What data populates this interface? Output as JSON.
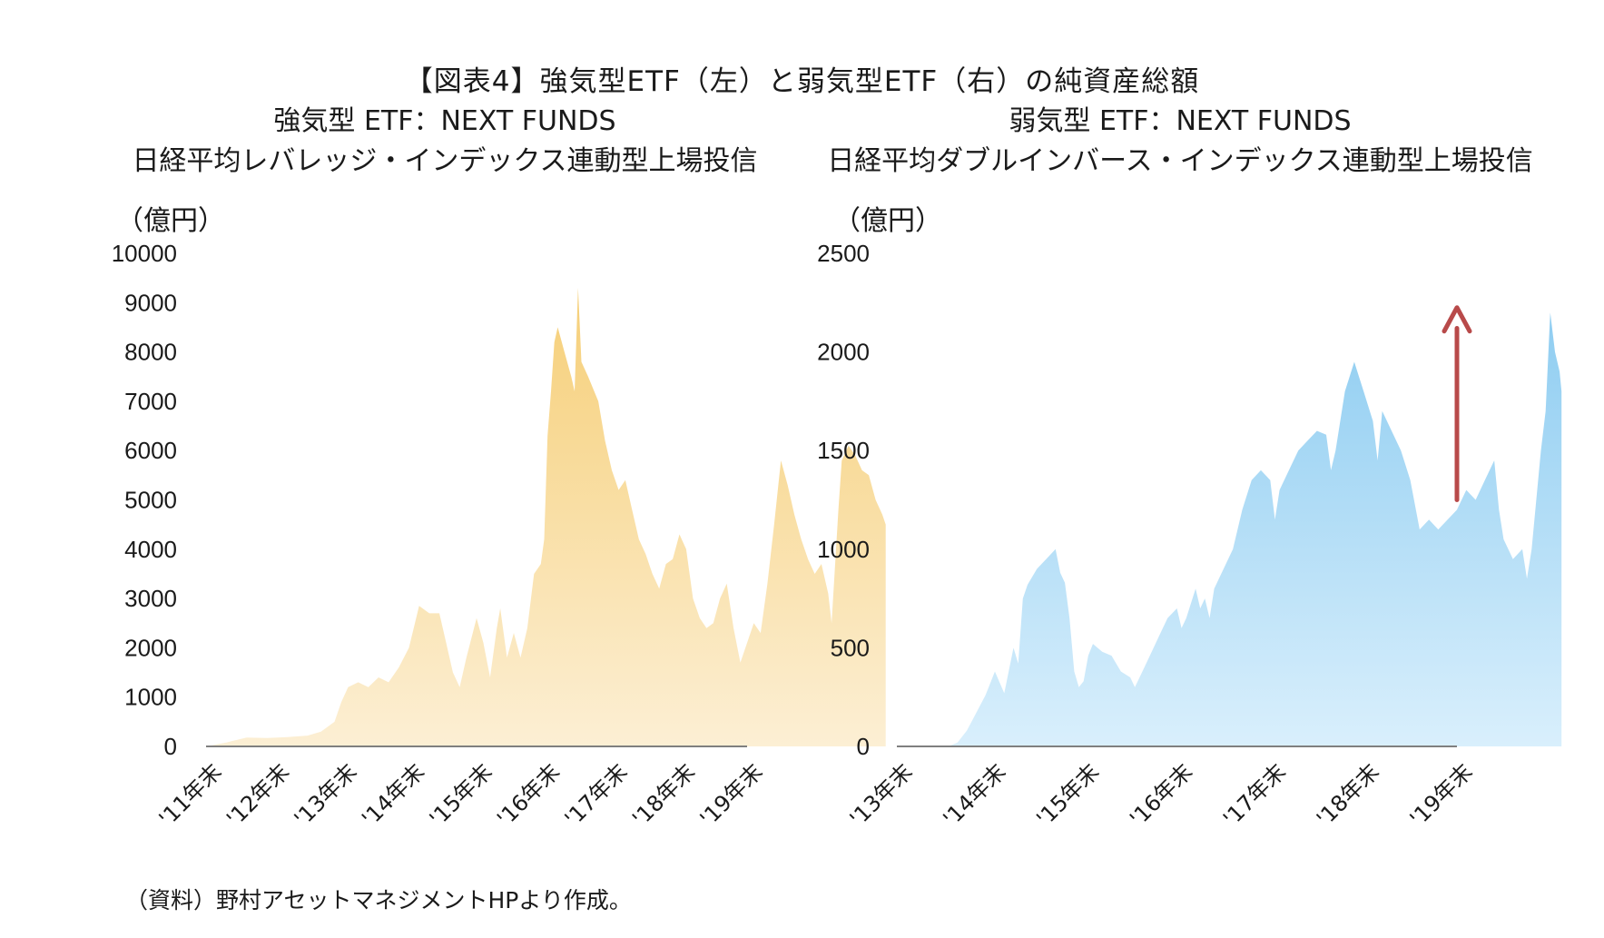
{
  "title": "【図表4】強気型ETF（左）と弱気型ETF（右）の純資産総額",
  "source": "（資料）野村アセットマネジメントHPより作成。",
  "chart_data": [
    {
      "type": "area",
      "subtitle_line1": "強気型 ETF：NEXT FUNDS",
      "subtitle_line2": "日経平均レバレッジ・インデックス連動型上場投信",
      "unit_label": "（億円）",
      "color": "#f8d790",
      "ylim": [
        0,
        10000
      ],
      "yticks": [
        "0",
        "1000",
        "2000",
        "3000",
        "4000",
        "5000",
        "6000",
        "7000",
        "8000",
        "9000",
        "10000"
      ],
      "x_categories": [
        "'11年末",
        "'12年末",
        "'13年末",
        "'14年末",
        "'15年末",
        "'16年末",
        "'17年末",
        "'18年末",
        "'19年末"
      ],
      "points": [
        [
          0.0,
          0
        ],
        [
          0.3,
          80
        ],
        [
          0.6,
          180
        ],
        [
          0.9,
          170
        ],
        [
          1.2,
          190
        ],
        [
          1.5,
          220
        ],
        [
          1.7,
          300
        ],
        [
          1.9,
          500
        ],
        [
          2.0,
          900
        ],
        [
          2.1,
          1200
        ],
        [
          2.25,
          1300
        ],
        [
          2.4,
          1200
        ],
        [
          2.55,
          1400
        ],
        [
          2.7,
          1300
        ],
        [
          2.85,
          1600
        ],
        [
          3.0,
          2000
        ],
        [
          3.15,
          2850
        ],
        [
          3.3,
          2700
        ],
        [
          3.45,
          2700
        ],
        [
          3.55,
          2100
        ],
        [
          3.65,
          1500
        ],
        [
          3.75,
          1200
        ],
        [
          3.85,
          1800
        ],
        [
          4.0,
          2600
        ],
        [
          4.1,
          2100
        ],
        [
          4.2,
          1400
        ],
        [
          4.3,
          2400
        ],
        [
          4.35,
          2800
        ],
        [
          4.45,
          1800
        ],
        [
          4.55,
          2300
        ],
        [
          4.65,
          1800
        ],
        [
          4.75,
          2400
        ],
        [
          4.85,
          3500
        ],
        [
          4.95,
          3700
        ],
        [
          5.0,
          4200
        ],
        [
          5.05,
          6300
        ],
        [
          5.1,
          7200
        ],
        [
          5.15,
          8200
        ],
        [
          5.2,
          8500
        ],
        [
          5.3,
          8000
        ],
        [
          5.4,
          7500
        ],
        [
          5.45,
          7200
        ],
        [
          5.5,
          9300
        ],
        [
          5.55,
          7800
        ],
        [
          5.65,
          7500
        ],
        [
          5.8,
          7000
        ],
        [
          5.9,
          6200
        ],
        [
          6.0,
          5600
        ],
        [
          6.1,
          5200
        ],
        [
          6.2,
          5400
        ],
        [
          6.3,
          4800
        ],
        [
          6.4,
          4200
        ],
        [
          6.5,
          3900
        ],
        [
          6.6,
          3500
        ],
        [
          6.7,
          3200
        ],
        [
          6.8,
          3700
        ],
        [
          6.9,
          3800
        ],
        [
          7.0,
          4300
        ],
        [
          7.1,
          4000
        ],
        [
          7.2,
          3000
        ],
        [
          7.3,
          2600
        ],
        [
          7.4,
          2400
        ],
        [
          7.5,
          2500
        ],
        [
          7.6,
          3000
        ],
        [
          7.7,
          3300
        ],
        [
          7.8,
          2400
        ],
        [
          7.9,
          1700
        ],
        [
          8.0,
          2100
        ],
        [
          8.1,
          2500
        ],
        [
          8.2,
          2300
        ],
        [
          8.3,
          3300
        ],
        [
          8.4,
          4500
        ],
        [
          8.5,
          5800
        ],
        [
          8.6,
          5300
        ],
        [
          8.7,
          4700
        ],
        [
          8.8,
          4200
        ],
        [
          8.9,
          3800
        ],
        [
          9.0,
          3500
        ],
        [
          9.1,
          3700
        ],
        [
          9.2,
          3100
        ],
        [
          9.25,
          2500
        ],
        [
          9.35,
          4800
        ],
        [
          9.4,
          5800
        ],
        [
          9.5,
          6100
        ],
        [
          9.6,
          5900
        ],
        [
          9.7,
          5600
        ],
        [
          9.8,
          5500
        ],
        [
          9.9,
          5000
        ],
        [
          10.0,
          4700
        ],
        [
          10.05,
          4500
        ],
        [
          10.05,
          0
        ]
      ]
    },
    {
      "type": "area",
      "subtitle_line1": "弱気型 ETF：NEXT FUNDS",
      "subtitle_line2": "日経平均ダブルインバース・インデックス連動型上場投信",
      "unit_label": "（億円）",
      "color": "#a6d8f4",
      "ylim": [
        0,
        2500
      ],
      "yticks": [
        "0",
        "500",
        "1000",
        "1500",
        "2000",
        "2500"
      ],
      "x_categories": [
        "'13年末",
        "'14年末",
        "'15年末",
        "'16年末",
        "'17年末",
        "'18年末",
        "'19年末"
      ],
      "arrow_color": "#b84a4a",
      "points": [
        [
          0.55,
          0
        ],
        [
          0.65,
          20
        ],
        [
          0.75,
          80
        ],
        [
          0.85,
          170
        ],
        [
          0.95,
          260
        ],
        [
          1.05,
          380
        ],
        [
          1.15,
          270
        ],
        [
          1.25,
          500
        ],
        [
          1.3,
          420
        ],
        [
          1.35,
          750
        ],
        [
          1.4,
          820
        ],
        [
          1.5,
          900
        ],
        [
          1.6,
          950
        ],
        [
          1.7,
          1000
        ],
        [
          1.75,
          880
        ],
        [
          1.8,
          830
        ],
        [
          1.85,
          650
        ],
        [
          1.9,
          380
        ],
        [
          1.95,
          300
        ],
        [
          2.0,
          330
        ],
        [
          2.05,
          460
        ],
        [
          2.1,
          520
        ],
        [
          2.2,
          480
        ],
        [
          2.3,
          460
        ],
        [
          2.4,
          380
        ],
        [
          2.5,
          350
        ],
        [
          2.55,
          300
        ],
        [
          2.6,
          350
        ],
        [
          2.7,
          450
        ],
        [
          2.8,
          550
        ],
        [
          2.9,
          650
        ],
        [
          3.0,
          700
        ],
        [
          3.05,
          600
        ],
        [
          3.1,
          650
        ],
        [
          3.2,
          800
        ],
        [
          3.25,
          700
        ],
        [
          3.3,
          750
        ],
        [
          3.35,
          650
        ],
        [
          3.4,
          800
        ],
        [
          3.5,
          900
        ],
        [
          3.6,
          1000
        ],
        [
          3.7,
          1200
        ],
        [
          3.8,
          1350
        ],
        [
          3.9,
          1400
        ],
        [
          4.0,
          1350
        ],
        [
          4.05,
          1150
        ],
        [
          4.1,
          1300
        ],
        [
          4.2,
          1400
        ],
        [
          4.3,
          1500
        ],
        [
          4.4,
          1550
        ],
        [
          4.5,
          1600
        ],
        [
          4.6,
          1580
        ],
        [
          4.65,
          1400
        ],
        [
          4.7,
          1500
        ],
        [
          4.8,
          1800
        ],
        [
          4.9,
          1950
        ],
        [
          5.0,
          1800
        ],
        [
          5.1,
          1650
        ],
        [
          5.15,
          1450
        ],
        [
          5.2,
          1700
        ],
        [
          5.3,
          1600
        ],
        [
          5.4,
          1500
        ],
        [
          5.5,
          1350
        ],
        [
          5.6,
          1100
        ],
        [
          5.7,
          1150
        ],
        [
          5.8,
          1100
        ],
        [
          5.9,
          1150
        ],
        [
          6.0,
          1200
        ],
        [
          6.1,
          1300
        ],
        [
          6.2,
          1250
        ],
        [
          6.3,
          1350
        ],
        [
          6.4,
          1450
        ],
        [
          6.45,
          1200
        ],
        [
          6.5,
          1050
        ],
        [
          6.6,
          950
        ],
        [
          6.7,
          1000
        ],
        [
          6.75,
          850
        ],
        [
          6.8,
          1000
        ],
        [
          6.9,
          1500
        ],
        [
          6.95,
          1700
        ],
        [
          7.0,
          2200
        ],
        [
          7.05,
          2000
        ],
        [
          7.1,
          1900
        ],
        [
          7.12,
          1800
        ],
        [
          7.12,
          0
        ]
      ]
    }
  ]
}
